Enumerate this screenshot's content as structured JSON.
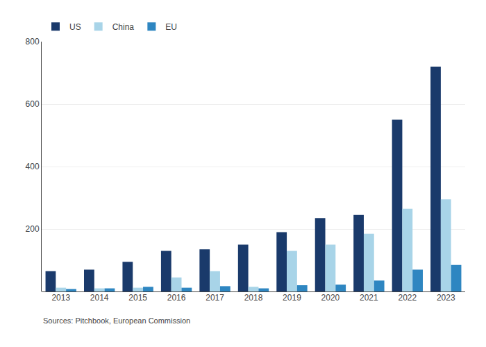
{
  "chart_data": {
    "type": "bar",
    "categories": [
      "2013",
      "2014",
      "2015",
      "2016",
      "2017",
      "2018",
      "2019",
      "2020",
      "2021",
      "2022",
      "2023"
    ],
    "series": [
      {
        "name": "US",
        "color": "#1a3a6b",
        "values": [
          65,
          70,
          95,
          130,
          135,
          150,
          190,
          235,
          245,
          550,
          720
        ]
      },
      {
        "name": "China",
        "color": "#a8d4e8",
        "values": [
          12,
          10,
          12,
          45,
          65,
          15,
          130,
          150,
          185,
          265,
          295
        ]
      },
      {
        "name": "EU",
        "color": "#2e86c1",
        "values": [
          8,
          10,
          15,
          12,
          17,
          10,
          20,
          22,
          35,
          70,
          85
        ]
      }
    ],
    "ylim": [
      0,
      800
    ],
    "yticks": [
      200,
      400,
      600,
      800
    ],
    "grid": true,
    "legend": "upper left",
    "annotations": [
      "Sources: Pitchbook, European Commission"
    ]
  }
}
